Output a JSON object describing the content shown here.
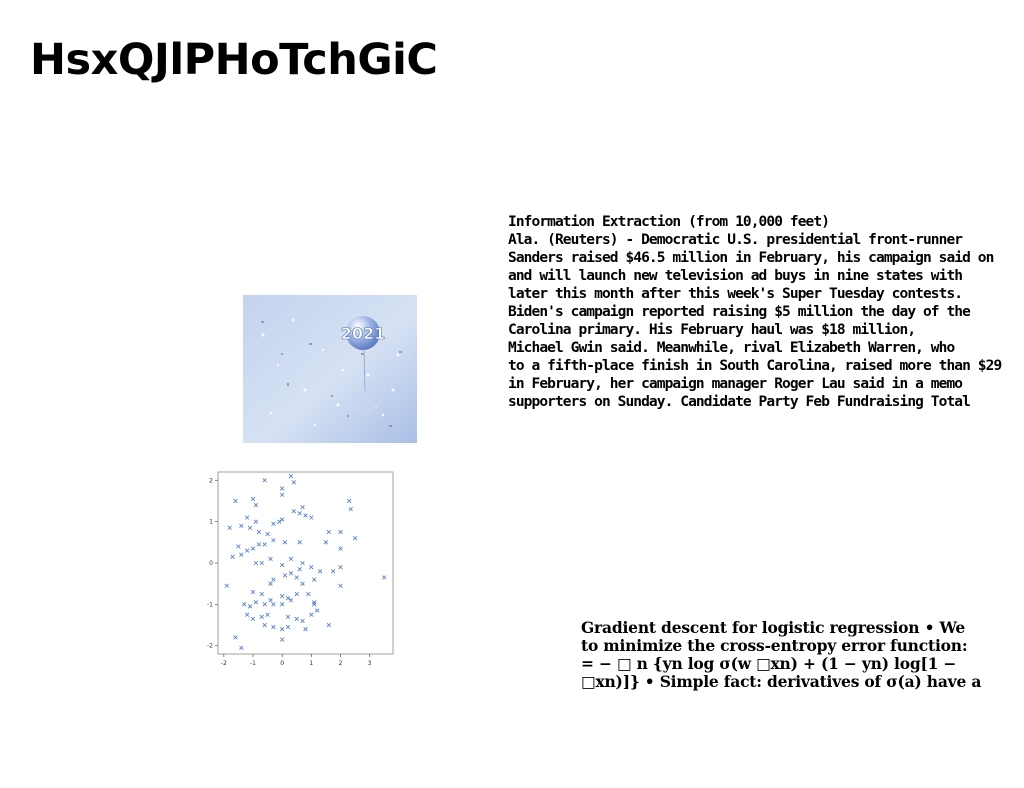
{
  "page": {
    "title": "HsxQJlPHoTchGiC"
  },
  "news_block": {
    "lines": [
      "Information Extraction (from 10,000 feet)",
      "Ala. (Reuters) - Democratic U.S. presidential front-runner",
      "Sanders raised $46.5 million in February, his campaign said on",
      "and will launch new television ad buys in nine states with",
      "later this month after this week's Super Tuesday contests.",
      "Biden's campaign reported raising $5 million the day of the",
      "Carolina primary. His February haul was $18 million,",
      "Michael Gwin said. Meanwhile, rival Elizabeth Warren, who",
      "to a fifth-place finish in South Carolina, raised more than $29",
      "in February, her campaign manager Roger Lau said in a memo",
      "supporters on Sunday. Candidate Party Feb Fundraising Total"
    ]
  },
  "photo": {
    "label": "2021",
    "icon": "new-year-balloon-photo",
    "colors": {
      "sky": "#b9cdee",
      "balloon": "#6f8fd0"
    }
  },
  "gradient_block": {
    "lines": [
      "Gradient descent for logistic regression • We",
      "to minimize the cross-entropy error function:",
      "= − □ n {yn log σ(w □xn) + (1 − yn) log[1 −",
      "□xn)]} • Simple fact: derivatives of σ(a) have a"
    ]
  },
  "chart_data": {
    "type": "scatter",
    "marker": "x",
    "color": "#4a78c4",
    "xlim": [
      -2.2,
      3.8
    ],
    "ylim": [
      -2.2,
      2.2
    ],
    "xticks": [
      "-2",
      "-1",
      "0",
      "1",
      "2",
      "3"
    ],
    "yticks": [
      "2",
      "1",
      "0",
      "-1",
      "-2"
    ],
    "grid": false,
    "points": [
      [
        -1.6,
        1.5
      ],
      [
        -1.2,
        1.1
      ],
      [
        -1.0,
        1.55
      ],
      [
        -0.9,
        1.4
      ],
      [
        -0.6,
        2.0
      ],
      [
        0.3,
        2.1
      ],
      [
        0.4,
        1.95
      ],
      [
        0.0,
        1.8
      ],
      [
        0.0,
        1.65
      ],
      [
        0.7,
        1.35
      ],
      [
        0.6,
        1.2
      ],
      [
        0.4,
        1.25
      ],
      [
        0.8,
        1.15
      ],
      [
        1.0,
        1.1
      ],
      [
        0.0,
        1.05
      ],
      [
        2.3,
        1.5
      ],
      [
        2.35,
        1.3
      ],
      [
        -1.8,
        0.85
      ],
      [
        -1.4,
        0.9
      ],
      [
        -1.1,
        0.85
      ],
      [
        -0.9,
        1.0
      ],
      [
        -0.8,
        0.75
      ],
      [
        -0.5,
        0.7
      ],
      [
        -0.3,
        0.95
      ],
      [
        -0.1,
        1.0
      ],
      [
        1.6,
        0.75
      ],
      [
        2.0,
        0.75
      ],
      [
        2.5,
        0.6
      ],
      [
        -1.5,
        0.4
      ],
      [
        -1.2,
        0.3
      ],
      [
        -1.0,
        0.35
      ],
      [
        -0.8,
        0.45
      ],
      [
        -0.6,
        0.45
      ],
      [
        -0.3,
        0.55
      ],
      [
        0.1,
        0.5
      ],
      [
        0.6,
        0.5
      ],
      [
        1.5,
        0.5
      ],
      [
        2.0,
        0.35
      ],
      [
        -1.7,
        0.15
      ],
      [
        -1.4,
        0.2
      ],
      [
        -0.9,
        0.0
      ],
      [
        -0.7,
        0.0
      ],
      [
        -0.4,
        0.1
      ],
      [
        0.0,
        -0.05
      ],
      [
        0.3,
        0.1
      ],
      [
        0.7,
        0.0
      ],
      [
        0.6,
        -0.15
      ],
      [
        1.0,
        -0.1
      ],
      [
        1.3,
        -0.2
      ],
      [
        1.75,
        -0.2
      ],
      [
        2.0,
        -0.1
      ],
      [
        3.5,
        -0.35
      ],
      [
        -1.9,
        -0.55
      ],
      [
        -0.4,
        -0.5
      ],
      [
        -0.3,
        -0.4
      ],
      [
        0.1,
        -0.3
      ],
      [
        0.3,
        -0.25
      ],
      [
        0.5,
        -0.35
      ],
      [
        0.7,
        -0.5
      ],
      [
        1.1,
        -0.4
      ],
      [
        2.0,
        -0.55
      ],
      [
        -1.0,
        -0.7
      ],
      [
        -0.7,
        -0.75
      ],
      [
        -0.4,
        -0.9
      ],
      [
        0.0,
        -0.8
      ],
      [
        0.2,
        -0.85
      ],
      [
        0.5,
        -0.75
      ],
      [
        0.9,
        -0.75
      ],
      [
        1.1,
        -0.95
      ],
      [
        -1.3,
        -1.0
      ],
      [
        -1.1,
        -1.05
      ],
      [
        -0.9,
        -0.95
      ],
      [
        -0.6,
        -1.0
      ],
      [
        -0.3,
        -1.0
      ],
      [
        0.0,
        -1.0
      ],
      [
        0.3,
        -0.9
      ],
      [
        1.1,
        -1.0
      ],
      [
        -1.0,
        -1.35
      ],
      [
        -0.7,
        -1.3
      ],
      [
        -0.5,
        -1.25
      ],
      [
        0.0,
        -1.6
      ],
      [
        0.2,
        -1.3
      ],
      [
        0.5,
        -1.35
      ],
      [
        0.7,
        -1.4
      ],
      [
        1.0,
        -1.25
      ],
      [
        1.2,
        -1.15
      ],
      [
        1.6,
        -1.5
      ],
      [
        -1.2,
        -1.25
      ],
      [
        -0.3,
        -1.55
      ],
      [
        0.2,
        -1.55
      ],
      [
        -1.6,
        -1.8
      ],
      [
        -1.4,
        -2.05
      ],
      [
        0.0,
        -1.85
      ],
      [
        -0.6,
        -1.5
      ],
      [
        0.8,
        -1.6
      ]
    ]
  }
}
